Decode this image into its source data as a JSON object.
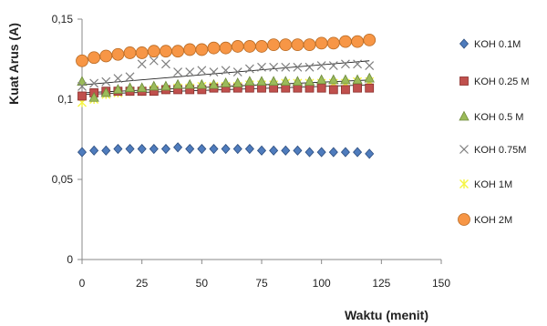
{
  "chart_data": {
    "type": "scatter",
    "title": "",
    "xlabel": "Waktu (menit)",
    "ylabel": "Kuat Arus (A)",
    "xlim": [
      0,
      150
    ],
    "ylim": [
      0,
      0.15
    ],
    "x_ticks": [
      0,
      25,
      50,
      75,
      100,
      125,
      150
    ],
    "x_tick_labels": [
      "0",
      "25",
      "50",
      "75",
      "100",
      "125",
      "150"
    ],
    "y_ticks": [
      0,
      0.05,
      0.1,
      0.15
    ],
    "y_tick_labels": [
      "0",
      "0,05",
      "0,1",
      "0,15"
    ],
    "grid": false,
    "legend_position": "right",
    "x": [
      0,
      5,
      10,
      15,
      20,
      25,
      30,
      35,
      40,
      45,
      50,
      55,
      60,
      65,
      70,
      75,
      80,
      85,
      90,
      95,
      100,
      105,
      110,
      115,
      120
    ],
    "series": [
      {
        "name": "KOH 0.1M",
        "marker": "diamond",
        "color": "#4f7cbd",
        "values": [
          0.067,
          0.068,
          0.068,
          0.069,
          0.069,
          0.069,
          0.069,
          0.069,
          0.07,
          0.069,
          0.069,
          0.069,
          0.069,
          0.069,
          0.069,
          0.068,
          0.068,
          0.068,
          0.068,
          0.067,
          0.067,
          0.067,
          0.067,
          0.067,
          0.066
        ],
        "trend": null
      },
      {
        "name": "KOH 0.25 M",
        "marker": "square",
        "color": "#c0504d",
        "values": [
          0.102,
          0.104,
          0.105,
          0.105,
          0.105,
          0.105,
          0.105,
          0.106,
          0.106,
          0.106,
          0.106,
          0.107,
          0.107,
          0.107,
          0.107,
          0.107,
          0.107,
          0.107,
          0.107,
          0.107,
          0.107,
          0.106,
          0.106,
          0.107,
          0.107
        ],
        "trend": [
          0.103,
          0.109
        ]
      },
      {
        "name": "KOH 0.5 M",
        "marker": "triangle",
        "color": "#9bbb59",
        "values": [
          0.111,
          0.101,
          0.104,
          0.106,
          0.107,
          0.107,
          0.108,
          0.108,
          0.109,
          0.109,
          0.109,
          0.109,
          0.11,
          0.11,
          0.111,
          0.111,
          0.111,
          0.111,
          0.111,
          0.111,
          0.112,
          0.112,
          0.112,
          0.112,
          0.113
        ],
        "trend": [
          0.104,
          0.112
        ]
      },
      {
        "name": "KOH 0.75M",
        "marker": "x",
        "color": "#7f7f7f",
        "values": [
          0.108,
          0.11,
          0.111,
          0.113,
          0.114,
          0.122,
          0.124,
          0.122,
          0.117,
          0.117,
          0.118,
          0.117,
          0.118,
          0.117,
          0.119,
          0.12,
          0.12,
          0.12,
          0.12,
          0.12,
          0.121,
          0.121,
          0.122,
          0.122,
          0.121
        ],
        "trend": [
          0.109,
          0.124
        ]
      },
      {
        "name": "KOH 1M",
        "marker": "star",
        "color": "#f5f542",
        "values": [
          0.098,
          0.1,
          0.103,
          0.104,
          0.105,
          0.105,
          0.106,
          0.106,
          0.107,
          0.107,
          0.108,
          0.108,
          0.108,
          0.108,
          0.109,
          0.109,
          0.109,
          0.11,
          0.11,
          0.11,
          0.11,
          0.11,
          0.11,
          0.111,
          0.111
        ],
        "trend": null
      },
      {
        "name": "KOH 2M",
        "marker": "circle",
        "color": "#f79646",
        "values": [
          0.124,
          0.126,
          0.127,
          0.128,
          0.129,
          0.129,
          0.13,
          0.13,
          0.13,
          0.131,
          0.131,
          0.132,
          0.132,
          0.133,
          0.133,
          0.133,
          0.134,
          0.134,
          0.134,
          0.134,
          0.135,
          0.135,
          0.136,
          0.136,
          0.137
        ],
        "trend": null
      }
    ]
  }
}
